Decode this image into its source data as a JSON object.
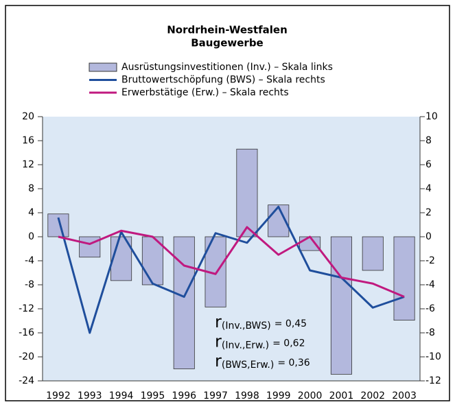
{
  "chart_data": {
    "type": "bar-line",
    "title": "Nordrhein-Westfalen",
    "subtitle": "Baugewerbe",
    "categories": [
      "1992",
      "1993",
      "1994",
      "1995",
      "1996",
      "1997",
      "1998",
      "1999",
      "2000",
      "2001",
      "2002",
      "2003"
    ],
    "series": [
      {
        "name": "Ausrüstungsinvestitionen (Inv.) – Skala links",
        "color": "#b3b8dd",
        "type": "bar",
        "axis": "y",
        "values": [
          3.8,
          -3.4,
          -7.3,
          -8,
          -22,
          -11.7,
          14.6,
          5.3,
          -2.3,
          -22.9,
          -5.6,
          -13.9
        ]
      },
      {
        "name": "Bruttowertschöpfung (BWS) – Skala rechts",
        "color": "#1f4e9c",
        "type": "line",
        "axis": "y2",
        "values": [
          1.6,
          -8,
          0.4,
          -3.9,
          -5,
          0.3,
          -0.5,
          2.5,
          -2.8,
          -3.4,
          -5.9,
          -5
        ]
      },
      {
        "name": "Erwerbstätige (Erw.) – Skala rechts",
        "color": "#c0197f",
        "type": "line",
        "axis": "y2",
        "values": [
          0,
          -0.6,
          0.5,
          0,
          -2.4,
          -3.1,
          0.8,
          -1.5,
          0,
          -3.4,
          -3.9,
          -5
        ]
      }
    ],
    "ylim": [
      -24,
      20
    ],
    "yticks": [
      -24,
      -20,
      -16,
      -12,
      -8,
      -4,
      0,
      4,
      8,
      12,
      16,
      20
    ],
    "y2lim": [
      -12,
      10
    ],
    "y2ticks": [
      -12,
      -10,
      -8,
      -6,
      -4,
      -2,
      0,
      2,
      4,
      6,
      8,
      10
    ],
    "annotations": [
      {
        "symbol": "r",
        "subscript": "(Inv.,BWS)",
        "text": "= 0,45"
      },
      {
        "symbol": "r",
        "subscript": "(Inv.,Erw.)",
        "text": "= 0,62"
      },
      {
        "symbol": "r",
        "subscript": "(BWS,Erw.)",
        "text": "= 0,36"
      }
    ],
    "grid": false
  }
}
